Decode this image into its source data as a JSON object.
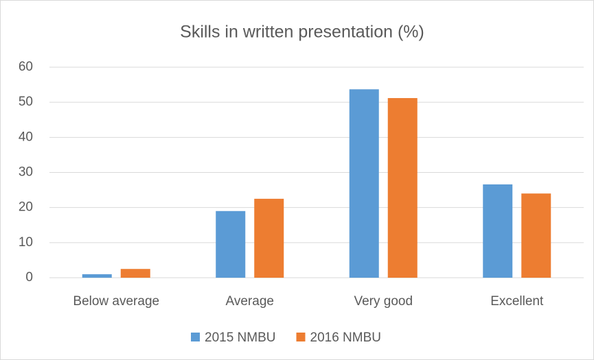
{
  "chart_data": {
    "type": "bar",
    "title": "Skills in written presentation  (%)",
    "categories": [
      "Below average",
      "Average",
      "Very good",
      "Excellent"
    ],
    "series": [
      {
        "name": "2015 NMBU",
        "color": "#5b9bd5",
        "values": [
          1.0,
          19.0,
          53.7,
          26.6
        ]
      },
      {
        "name": "2016 NMBU",
        "color": "#ed7d31",
        "values": [
          2.5,
          22.5,
          51.2,
          24.0
        ]
      }
    ],
    "ylim": [
      0,
      60
    ],
    "yticks": [
      0,
      10,
      20,
      30,
      40,
      50,
      60
    ],
    "grid": true,
    "legend": "bottom"
  }
}
